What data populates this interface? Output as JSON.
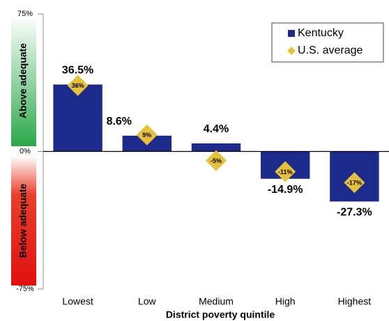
{
  "chart_data": {
    "type": "bar",
    "x_label": "District poverty quintile",
    "band_labels": {
      "above": "Above adequate",
      "below": "Below adequate"
    },
    "categories": [
      "Lowest",
      "Low",
      "Medium",
      "High",
      "Highest"
    ],
    "series": [
      {
        "name": "Kentucky",
        "color": "#1c2a8c",
        "marker": "bar",
        "values": [
          36.5,
          8.6,
          4.4,
          -14.9,
          -27.3
        ],
        "value_labels": [
          "36.5%",
          "8.6%",
          "4.4%",
          "-14.9%",
          "-27.3%"
        ]
      },
      {
        "name": "U.S. average",
        "color": "#e6c13c",
        "marker": "diamond",
        "values": [
          36,
          9,
          -5,
          -11,
          -17
        ],
        "value_labels": [
          "36%",
          "9%",
          "-5%",
          "-11%",
          "-17%"
        ]
      }
    ],
    "ylim": [
      -75,
      75
    ],
    "yticks": [
      {
        "value": -75,
        "label": "-75%"
      },
      {
        "value": 0,
        "label": "0%"
      },
      {
        "value": 75,
        "label": "75%"
      }
    ],
    "legend": "upper right"
  }
}
